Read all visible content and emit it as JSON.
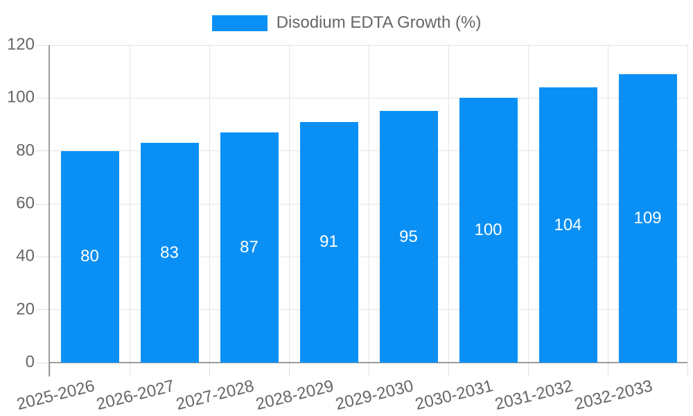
{
  "chart_data": {
    "type": "bar",
    "title": "Disodium EDTA Growth (%)",
    "categories": [
      "2025-2026",
      "2026-2027",
      "2027-2028",
      "2028-2029",
      "2029-2030",
      "2030-2031",
      "2031-2032",
      "2032-2033"
    ],
    "series": [
      {
        "name": "Disodium EDTA Growth (%)",
        "values": [
          80,
          83,
          87,
          91,
          95,
          100,
          104,
          109
        ]
      }
    ],
    "value_labels": [
      "80",
      "83",
      "87",
      "91",
      "95",
      "100",
      "104",
      "109"
    ],
    "y_ticks": [
      0,
      20,
      40,
      60,
      80,
      100,
      120
    ],
    "ylim": [
      0,
      120
    ],
    "xlabel": "",
    "ylabel": "",
    "grid": true,
    "legend_position": "top",
    "bar_color": "#0a90f5",
    "value_label_color": "#ffffff"
  }
}
